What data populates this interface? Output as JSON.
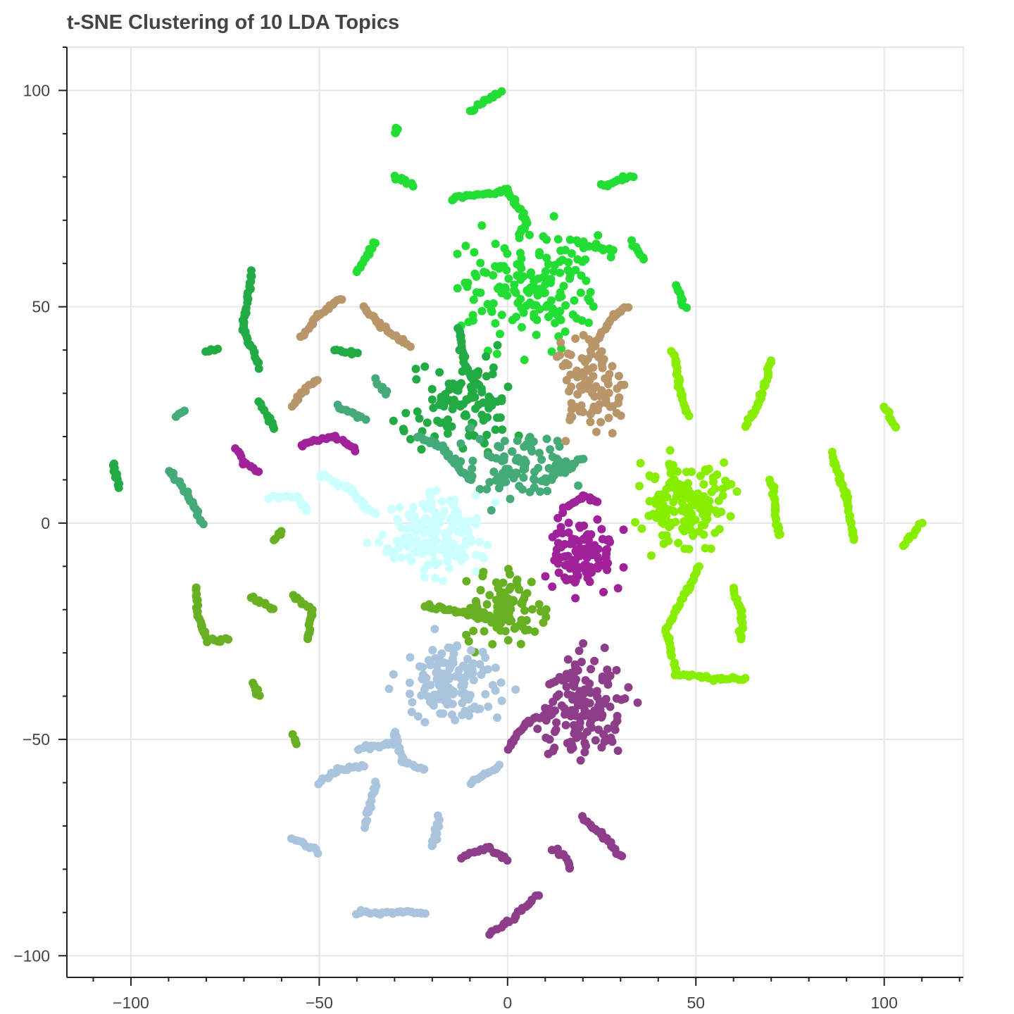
{
  "chart_data": {
    "type": "scatter",
    "title": "t-SNE Clustering of 10 LDA Topics",
    "xlabel": "",
    "ylabel": "",
    "xlim": [
      -117,
      121
    ],
    "ylim": [
      -105,
      110
    ],
    "x_ticks": [
      -100,
      -50,
      0,
      50,
      100
    ],
    "y_ticks": [
      100,
      50,
      0,
      -50,
      -100
    ],
    "x_tick_labels": [
      "−100",
      "−50",
      "0",
      "50",
      "100"
    ],
    "y_tick_labels": [
      "100",
      "50",
      "0",
      "−50",
      "−100"
    ],
    "grid": true,
    "legend": "none",
    "clusters": [
      {
        "color": "#22dd33",
        "center": [
          5,
          55
        ],
        "spread": [
          16,
          11
        ],
        "points": 160,
        "chains": [
          [
            [
              -2,
              100
            ],
            [
              -10,
              95
            ]
          ],
          [
            [
              -15,
              75
            ],
            [
              0,
              77
            ],
            [
              5,
              70
            ],
            [
              3,
              66
            ]
          ],
          [
            [
              18,
              65
            ],
            [
              28,
              63
            ]
          ],
          [
            [
              -30,
              90
            ],
            [
              -29,
              91
            ]
          ],
          [
            [
              33,
              65
            ],
            [
              36,
              61
            ]
          ],
          [
            [
              45,
              55
            ],
            [
              47,
              50
            ]
          ],
          [
            [
              -35,
              65
            ],
            [
              -40,
              58
            ]
          ],
          [
            [
              25,
              78
            ],
            [
              33,
              80
            ]
          ],
          [
            [
              -30,
              80
            ],
            [
              -25,
              78
            ]
          ]
        ]
      },
      {
        "color": "#22aa44",
        "center": [
          -12,
          28
        ],
        "spread": [
          12,
          9
        ],
        "points": 110,
        "chains": [
          [
            [
              -68,
              58
            ],
            [
              -70,
              45
            ],
            [
              -66,
              36
            ]
          ],
          [
            [
              -80,
              40
            ],
            [
              -77,
              40
            ]
          ],
          [
            [
              -13,
              45
            ],
            [
              -11,
              36
            ],
            [
              -8,
              32
            ]
          ],
          [
            [
              -105,
              14
            ],
            [
              -103,
              8
            ]
          ],
          [
            [
              -66,
              28
            ],
            [
              -62,
              22
            ]
          ],
          [
            [
              -46,
              40
            ],
            [
              -40,
              39
            ]
          ]
        ]
      },
      {
        "color": "#44aa77",
        "center": [
          2,
          13
        ],
        "spread": [
          12,
          7
        ],
        "points": 90,
        "chains": [
          [
            [
              -88,
              25
            ],
            [
              -86,
              26
            ]
          ],
          [
            [
              -90,
              12
            ],
            [
              -85,
              7
            ],
            [
              -81,
              0
            ]
          ],
          [
            [
              -35,
              33
            ],
            [
              -32,
              30
            ]
          ],
          [
            [
              -24,
              20
            ],
            [
              -18,
              18
            ],
            [
              -10,
              10
            ]
          ],
          [
            [
              -45,
              27
            ],
            [
              -38,
              24
            ]
          ],
          [
            [
              10,
              10
            ],
            [
              15,
              12
            ],
            [
              20,
              15
            ]
          ]
        ]
      },
      {
        "color": "#b8966a",
        "center": [
          22,
          32
        ],
        "spread": [
          8,
          9
        ],
        "points": 100,
        "chains": [
          [
            [
              -55,
              43
            ],
            [
              -50,
              48
            ],
            [
              -44,
              52
            ]
          ],
          [
            [
              -38,
              50
            ],
            [
              -34,
              46
            ],
            [
              -26,
              41
            ]
          ],
          [
            [
              -57,
              27
            ],
            [
              -55,
              30
            ],
            [
              -50,
              33
            ]
          ],
          [
            [
              23,
              41
            ],
            [
              28,
              48
            ],
            [
              32,
              50
            ]
          ]
        ]
      },
      {
        "color": "#a0229a",
        "center": [
          20,
          -7
        ],
        "spread": [
          8,
          7
        ],
        "points": 110,
        "chains": [
          [
            [
              -72,
              17
            ],
            [
              -70,
              14
            ],
            [
              -66,
              12
            ]
          ],
          [
            [
              -55,
              18
            ],
            [
              -46,
              20
            ],
            [
              -40,
              17
            ]
          ],
          [
            [
              16,
              4
            ],
            [
              20,
              6
            ],
            [
              24,
              5
            ]
          ]
        ]
      },
      {
        "color": "#ccffff",
        "center": [
          -20,
          -3
        ],
        "spread": [
          12,
          8
        ],
        "points": 150,
        "chains": [
          [
            [
              -63,
              6
            ],
            [
              -56,
              6
            ],
            [
              -53,
              3
            ]
          ],
          [
            [
              -50,
              11
            ],
            [
              -42,
              8
            ],
            [
              -38,
              4
            ],
            [
              -35,
              2
            ]
          ],
          [
            [
              -15,
              5
            ],
            [
              -12,
              0
            ],
            [
              -10,
              -3
            ]
          ]
        ]
      },
      {
        "color": "#88ee00",
        "center": [
          47,
          5
        ],
        "spread": [
          10,
          9
        ],
        "points": 150,
        "chains": [
          [
            [
              51,
              -10
            ],
            [
              48,
              -15
            ],
            [
              42,
              -25
            ],
            [
              45,
              -35
            ],
            [
              55,
              -36
            ],
            [
              63,
              -36
            ]
          ],
          [
            [
              60,
              -15
            ],
            [
              62,
              -20
            ],
            [
              62,
              -27
            ]
          ],
          [
            [
              70,
              10
            ],
            [
              71,
              4
            ],
            [
              72,
              -3
            ]
          ],
          [
            [
              63,
              22
            ],
            [
              67,
              28
            ],
            [
              70,
              38
            ]
          ],
          [
            [
              44,
              40
            ],
            [
              46,
              30
            ],
            [
              48,
              25
            ]
          ],
          [
            [
              86,
              16
            ],
            [
              90,
              6
            ],
            [
              92,
              -4
            ]
          ],
          [
            [
              100,
              27
            ],
            [
              103,
              22
            ]
          ],
          [
            [
              105,
              -5
            ],
            [
              110,
              0
            ]
          ]
        ]
      },
      {
        "color": "#66b022",
        "center": [
          0,
          -20
        ],
        "spread": [
          9,
          7
        ],
        "points": 110,
        "chains": [
          [
            [
              -22,
              -19
            ],
            [
              -15,
              -20
            ],
            [
              -5,
              -22
            ]
          ],
          [
            [
              -83,
              -15
            ],
            [
              -82,
              -22
            ],
            [
              -80,
              -27
            ],
            [
              -74,
              -27
            ]
          ],
          [
            [
              -68,
              -17
            ],
            [
              -62,
              -20
            ]
          ],
          [
            [
              -57,
              -17
            ],
            [
              -52,
              -20
            ],
            [
              -53,
              -27
            ]
          ],
          [
            [
              -62,
              -4
            ],
            [
              -60,
              -2
            ]
          ],
          [
            [
              -68,
              -37
            ],
            [
              -66,
              -40
            ]
          ],
          [
            [
              -57,
              -49
            ],
            [
              -56,
              -51
            ]
          ]
        ]
      },
      {
        "color": "#aac4dd",
        "center": [
          -15,
          -37
        ],
        "spread": [
          11,
          8
        ],
        "points": 130,
        "chains": [
          [
            [
              -40,
              -52
            ],
            [
              -30,
              -51
            ]
          ],
          [
            [
              -30,
              -48
            ],
            [
              -28,
              -55
            ],
            [
              -22,
              -57
            ]
          ],
          [
            [
              -50,
              -60
            ],
            [
              -45,
              -57
            ],
            [
              -38,
              -56
            ]
          ],
          [
            [
              -57,
              -73
            ],
            [
              -50,
              -76
            ]
          ],
          [
            [
              -40,
              -90
            ],
            [
              -30,
              -90
            ],
            [
              -22,
              -90
            ]
          ],
          [
            [
              -35,
              -60
            ],
            [
              -38,
              -70
            ]
          ],
          [
            [
              -18,
              -68
            ],
            [
              -20,
              -75
            ]
          ],
          [
            [
              -10,
              -60
            ],
            [
              -2,
              -56
            ]
          ]
        ]
      },
      {
        "color": "#8e3d8a",
        "center": [
          20,
          -42
        ],
        "spread": [
          10,
          11
        ],
        "points": 150,
        "chains": [
          [
            [
              -12,
              -77
            ],
            [
              -5,
              -75
            ],
            [
              0,
              -78
            ]
          ],
          [
            [
              0,
              -52
            ],
            [
              5,
              -46
            ],
            [
              12,
              -44
            ]
          ],
          [
            [
              12,
              -75
            ],
            [
              15,
              -77
            ],
            [
              17,
              -80
            ]
          ],
          [
            [
              -5,
              -95
            ],
            [
              2,
              -91
            ],
            [
              8,
              -86
            ]
          ],
          [
            [
              20,
              -68
            ],
            [
              25,
              -72
            ],
            [
              30,
              -77
            ]
          ]
        ]
      }
    ]
  }
}
